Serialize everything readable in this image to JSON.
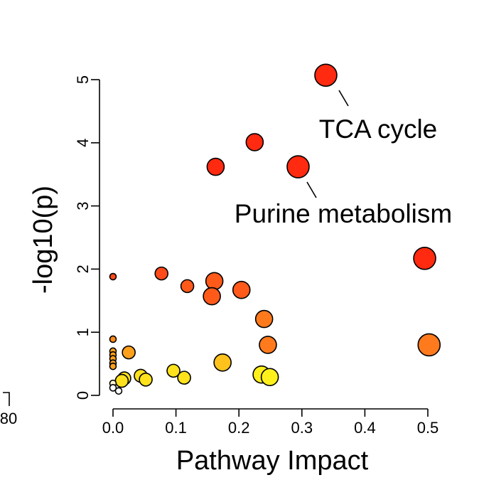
{
  "chart_data": {
    "type": "scatter",
    "title": "",
    "xlabel": "Pathway Impact",
    "ylabel": "-log10(p)",
    "xlim": [
      0,
      0.5
    ],
    "ylim": [
      0,
      5
    ],
    "x_ticks": [
      "0.0",
      "0.1",
      "0.2",
      "0.3",
      "0.4",
      "0.5"
    ],
    "y_ticks": [
      "0",
      "1",
      "2",
      "3",
      "4",
      "5"
    ],
    "points": [
      {
        "x": 0.338,
        "y": 5.07,
        "color": "#ff2a0f",
        "size": "large"
      },
      {
        "x": 0.225,
        "y": 4.01,
        "color": "#ff2a0f",
        "size": "medium"
      },
      {
        "x": 0.163,
        "y": 3.62,
        "color": "#ff2a0f",
        "size": "medium"
      },
      {
        "x": 0.294,
        "y": 3.62,
        "color": "#ff2a0f",
        "size": "large"
      },
      {
        "x": 0.495,
        "y": 2.17,
        "color": "#ff2a0f",
        "size": "large"
      },
      {
        "x": 0.0,
        "y": 1.88,
        "color": "#ff4a1a",
        "size": "tiny"
      },
      {
        "x": 0.077,
        "y": 1.93,
        "color": "#ff4a1a",
        "size": "small"
      },
      {
        "x": 0.118,
        "y": 1.73,
        "color": "#ff5a1a",
        "size": "small"
      },
      {
        "x": 0.161,
        "y": 1.81,
        "color": "#ff5a1a",
        "size": "medium"
      },
      {
        "x": 0.157,
        "y": 1.57,
        "color": "#ff5a1a",
        "size": "medium"
      },
      {
        "x": 0.204,
        "y": 1.67,
        "color": "#ff5a1a",
        "size": "medium"
      },
      {
        "x": 0.24,
        "y": 1.21,
        "color": "#ff7a1c",
        "size": "medium"
      },
      {
        "x": 0.0,
        "y": 0.89,
        "color": "#ff8a1a",
        "size": "tiny"
      },
      {
        "x": 0.246,
        "y": 0.8,
        "color": "#ff7a1c",
        "size": "medium"
      },
      {
        "x": 0.502,
        "y": 0.8,
        "color": "#ff7a1c",
        "size": "large"
      },
      {
        "x": 0.0,
        "y": 0.7,
        "color": "#ffa01c",
        "size": "tiny"
      },
      {
        "x": 0.0,
        "y": 0.64,
        "color": "#ffa01c",
        "size": "tiny"
      },
      {
        "x": 0.0,
        "y": 0.58,
        "color": "#ffa01c",
        "size": "tiny"
      },
      {
        "x": 0.0,
        "y": 0.51,
        "color": "#ffa01c",
        "size": "tiny"
      },
      {
        "x": 0.0,
        "y": 0.46,
        "color": "#ffa01c",
        "size": "tiny"
      },
      {
        "x": 0.025,
        "y": 0.68,
        "color": "#ffa01c",
        "size": "small"
      },
      {
        "x": 0.174,
        "y": 0.52,
        "color": "#ffc21c",
        "size": "medium"
      },
      {
        "x": 0.096,
        "y": 0.39,
        "color": "#ffe21c",
        "size": "small"
      },
      {
        "x": 0.113,
        "y": 0.28,
        "color": "#ffe21c",
        "size": "small"
      },
      {
        "x": 0.044,
        "y": 0.31,
        "color": "#ffe21c",
        "size": "small"
      },
      {
        "x": 0.052,
        "y": 0.25,
        "color": "#ffe21c",
        "size": "small"
      },
      {
        "x": 0.018,
        "y": 0.27,
        "color": "#ffe21c",
        "size": "small"
      },
      {
        "x": 0.014,
        "y": 0.23,
        "color": "#ffe21c",
        "size": "small"
      },
      {
        "x": 0.236,
        "y": 0.33,
        "color": "#fff01c",
        "size": "medium"
      },
      {
        "x": 0.249,
        "y": 0.29,
        "color": "#fff01c",
        "size": "medium"
      },
      {
        "x": 0.0,
        "y": 0.19,
        "color": "#fff8d0",
        "size": "tiny"
      },
      {
        "x": 0.0,
        "y": 0.12,
        "color": "#ffffff",
        "size": "tiny"
      },
      {
        "x": 0.009,
        "y": 0.07,
        "color": "#ffffff",
        "size": "tiny"
      }
    ],
    "annotations": [
      {
        "label": "TCA cycle",
        "x": 0.338,
        "y": 5.07
      },
      {
        "label": "Purine metabolism",
        "x": 0.294,
        "y": 3.62
      }
    ]
  },
  "edge_fragment": {
    "label": "80"
  }
}
